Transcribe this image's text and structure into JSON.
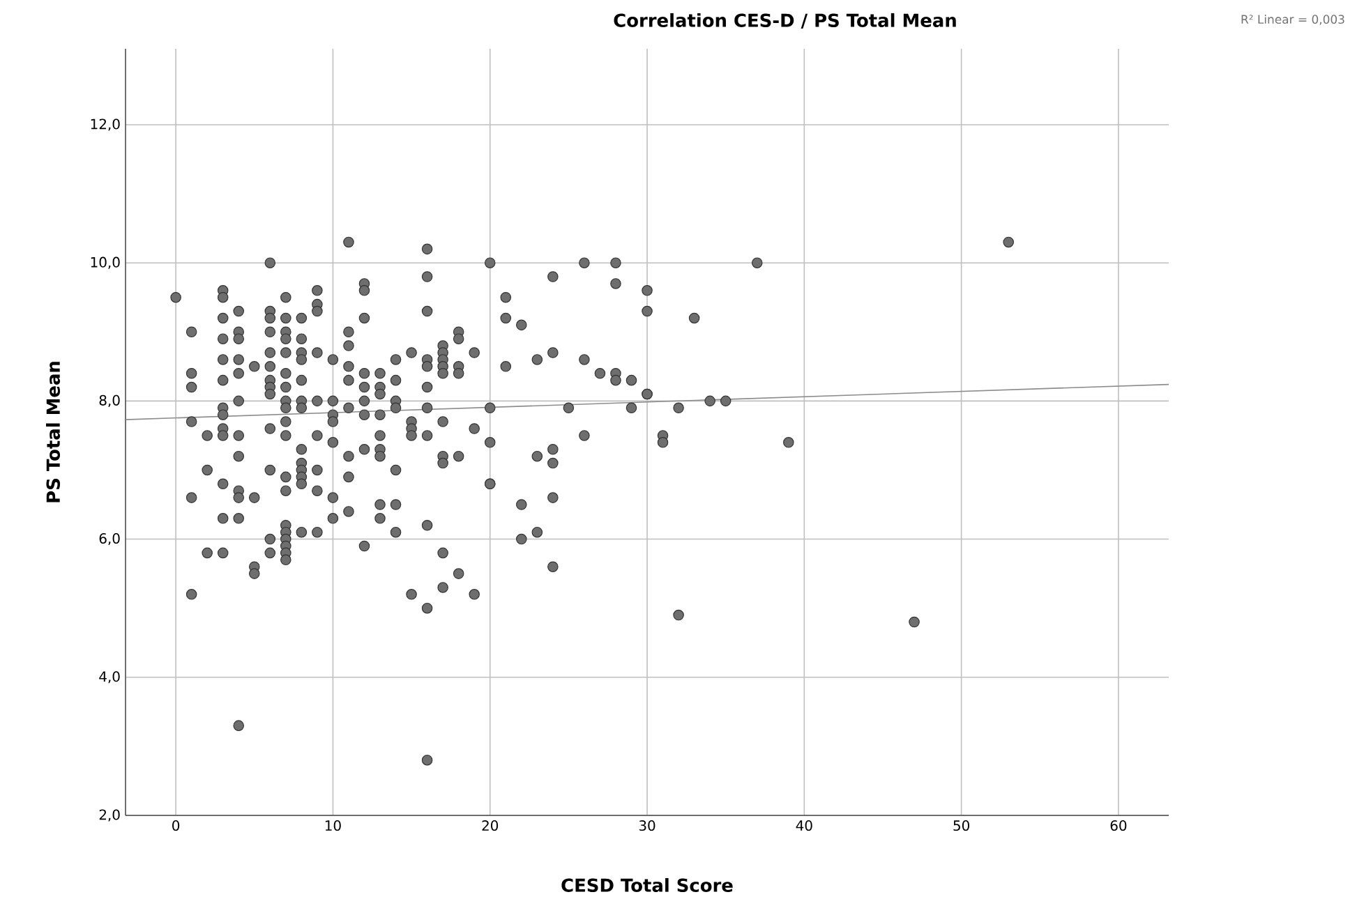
{
  "chart_data": {
    "type": "scatter",
    "title": "Correlation CES-D / PS Total Mean",
    "xlabel": "CESD Total Score",
    "ylabel": "PS Total Mean",
    "annotations": [
      "R² Linear = 0,003"
    ],
    "xlim": [
      -3.2,
      63.2
    ],
    "ylim": [
      2.0,
      13.1
    ],
    "xticks": [
      0,
      10,
      20,
      30,
      40,
      50,
      60
    ],
    "yticks": [
      {
        "value": 2,
        "label": "2,0"
      },
      {
        "value": 4,
        "label": "4,0"
      },
      {
        "value": 6,
        "label": "6,0"
      },
      {
        "value": 8,
        "label": "8,0"
      },
      {
        "value": 10,
        "label": "10,0"
      },
      {
        "value": 12,
        "label": "12,0"
      }
    ],
    "grid": true,
    "series": [
      {
        "color": "#6e6e6e",
        "marker": "circle",
        "x": [
          0,
          1,
          1,
          1,
          1,
          1,
          1,
          2,
          2,
          2,
          3,
          3,
          3,
          3,
          3,
          3,
          3,
          3,
          3,
          3,
          3,
          3,
          3,
          4,
          4,
          4,
          4,
          4,
          4,
          4,
          4,
          4,
          4,
          4,
          4,
          5,
          5,
          5,
          5,
          6,
          6,
          6,
          6,
          6,
          6,
          6,
          6,
          6,
          6,
          6,
          6,
          6,
          7,
          7,
          7,
          7,
          7,
          7,
          7,
          7,
          7,
          7,
          7,
          7,
          7,
          7,
          7,
          7,
          7,
          7,
          7,
          8,
          8,
          8,
          8,
          8,
          8,
          8,
          8,
          8,
          8,
          8,
          8,
          8,
          9,
          9,
          9,
          9,
          9,
          9,
          9,
          9,
          9,
          10,
          10,
          10,
          10,
          10,
          10,
          10,
          11,
          11,
          11,
          11,
          11,
          11,
          11,
          11,
          11,
          12,
          12,
          12,
          12,
          12,
          12,
          12,
          12,
          12,
          13,
          13,
          13,
          13,
          13,
          13,
          13,
          13,
          13,
          14,
          14,
          14,
          14,
          14,
          14,
          14,
          15,
          15,
          15,
          15,
          15,
          16,
          16,
          16,
          16,
          16,
          16,
          16,
          16,
          16,
          16,
          16,
          17,
          17,
          17,
          17,
          17,
          17,
          17,
          17,
          17,
          17,
          18,
          18,
          18,
          18,
          18,
          18,
          19,
          19,
          19,
          20,
          20,
          20,
          20,
          20,
          21,
          21,
          21,
          22,
          22,
          22,
          23,
          23,
          23,
          24,
          24,
          24,
          24,
          24,
          24,
          25,
          26,
          26,
          26,
          27,
          28,
          28,
          28,
          28,
          29,
          29,
          30,
          30,
          30,
          30,
          31,
          31,
          32,
          32,
          33,
          34,
          35,
          37,
          39,
          47,
          53
        ],
        "values": [
          9.5,
          9.0,
          8.4,
          8.2,
          7.7,
          6.6,
          5.2,
          7.5,
          7.0,
          5.8,
          9.6,
          9.5,
          9.2,
          8.9,
          8.6,
          8.3,
          7.9,
          7.8,
          7.6,
          7.5,
          6.8,
          6.3,
          5.8,
          9.3,
          9.0,
          8.9,
          8.6,
          8.4,
          8.0,
          7.5,
          7.2,
          6.7,
          6.6,
          6.3,
          3.3,
          8.5,
          6.6,
          5.6,
          5.5,
          10.0,
          9.3,
          9.2,
          9.0,
          8.7,
          8.5,
          8.3,
          8.2,
          8.1,
          7.6,
          7.0,
          6.0,
          5.8,
          9.5,
          9.2,
          9.0,
          8.9,
          8.7,
          8.4,
          8.2,
          8.0,
          7.9,
          7.7,
          7.5,
          6.9,
          6.7,
          6.2,
          6.1,
          6.0,
          5.9,
          5.8,
          5.7,
          9.2,
          8.9,
          8.7,
          8.6,
          8.3,
          8.0,
          7.9,
          7.3,
          7.1,
          7.0,
          6.9,
          6.8,
          6.1,
          9.6,
          9.4,
          9.3,
          8.7,
          8.0,
          7.5,
          7.0,
          6.7,
          6.1,
          8.6,
          8.0,
          7.8,
          7.7,
          7.4,
          6.6,
          6.3,
          10.3,
          9.0,
          8.8,
          8.5,
          8.3,
          7.9,
          7.2,
          6.9,
          6.4,
          9.7,
          9.6,
          9.2,
          8.4,
          8.2,
          8.0,
          7.8,
          7.3,
          5.9,
          8.4,
          8.2,
          8.1,
          7.8,
          7.5,
          7.3,
          7.2,
          6.5,
          6.3,
          8.6,
          8.3,
          8.0,
          7.9,
          7.0,
          6.5,
          6.1,
          8.7,
          7.7,
          7.6,
          7.5,
          5.2,
          10.2,
          9.8,
          9.3,
          8.6,
          8.5,
          8.2,
          7.9,
          7.5,
          6.2,
          5.0,
          2.8,
          8.8,
          8.7,
          8.6,
          8.5,
          8.4,
          7.7,
          7.2,
          7.1,
          5.8,
          5.3,
          9.0,
          8.9,
          8.5,
          8.4,
          7.2,
          5.5,
          8.7,
          7.6,
          5.2,
          10.0,
          7.9,
          7.4,
          6.8,
          6.8,
          9.5,
          9.2,
          8.5,
          9.1,
          6.5,
          6.0,
          8.6,
          7.2,
          6.1,
          9.8,
          8.7,
          7.3,
          7.1,
          6.6,
          5.6,
          7.9,
          10.0,
          8.6,
          7.5,
          8.4,
          10.0,
          9.7,
          8.4,
          8.3,
          8.3,
          7.9,
          9.6,
          9.3,
          8.1,
          8.1,
          7.5,
          7.4,
          7.9,
          4.9,
          9.2,
          8.0,
          8.0,
          10.0,
          7.4,
          4.8,
          10.3
        ]
      },
      {
        "type": "line",
        "color": "#8c8c8c",
        "marker": "none",
        "line_style": "solid",
        "x": [
          -3.2,
          63.2
        ],
        "values": [
          7.73,
          8.24
        ]
      }
    ]
  }
}
